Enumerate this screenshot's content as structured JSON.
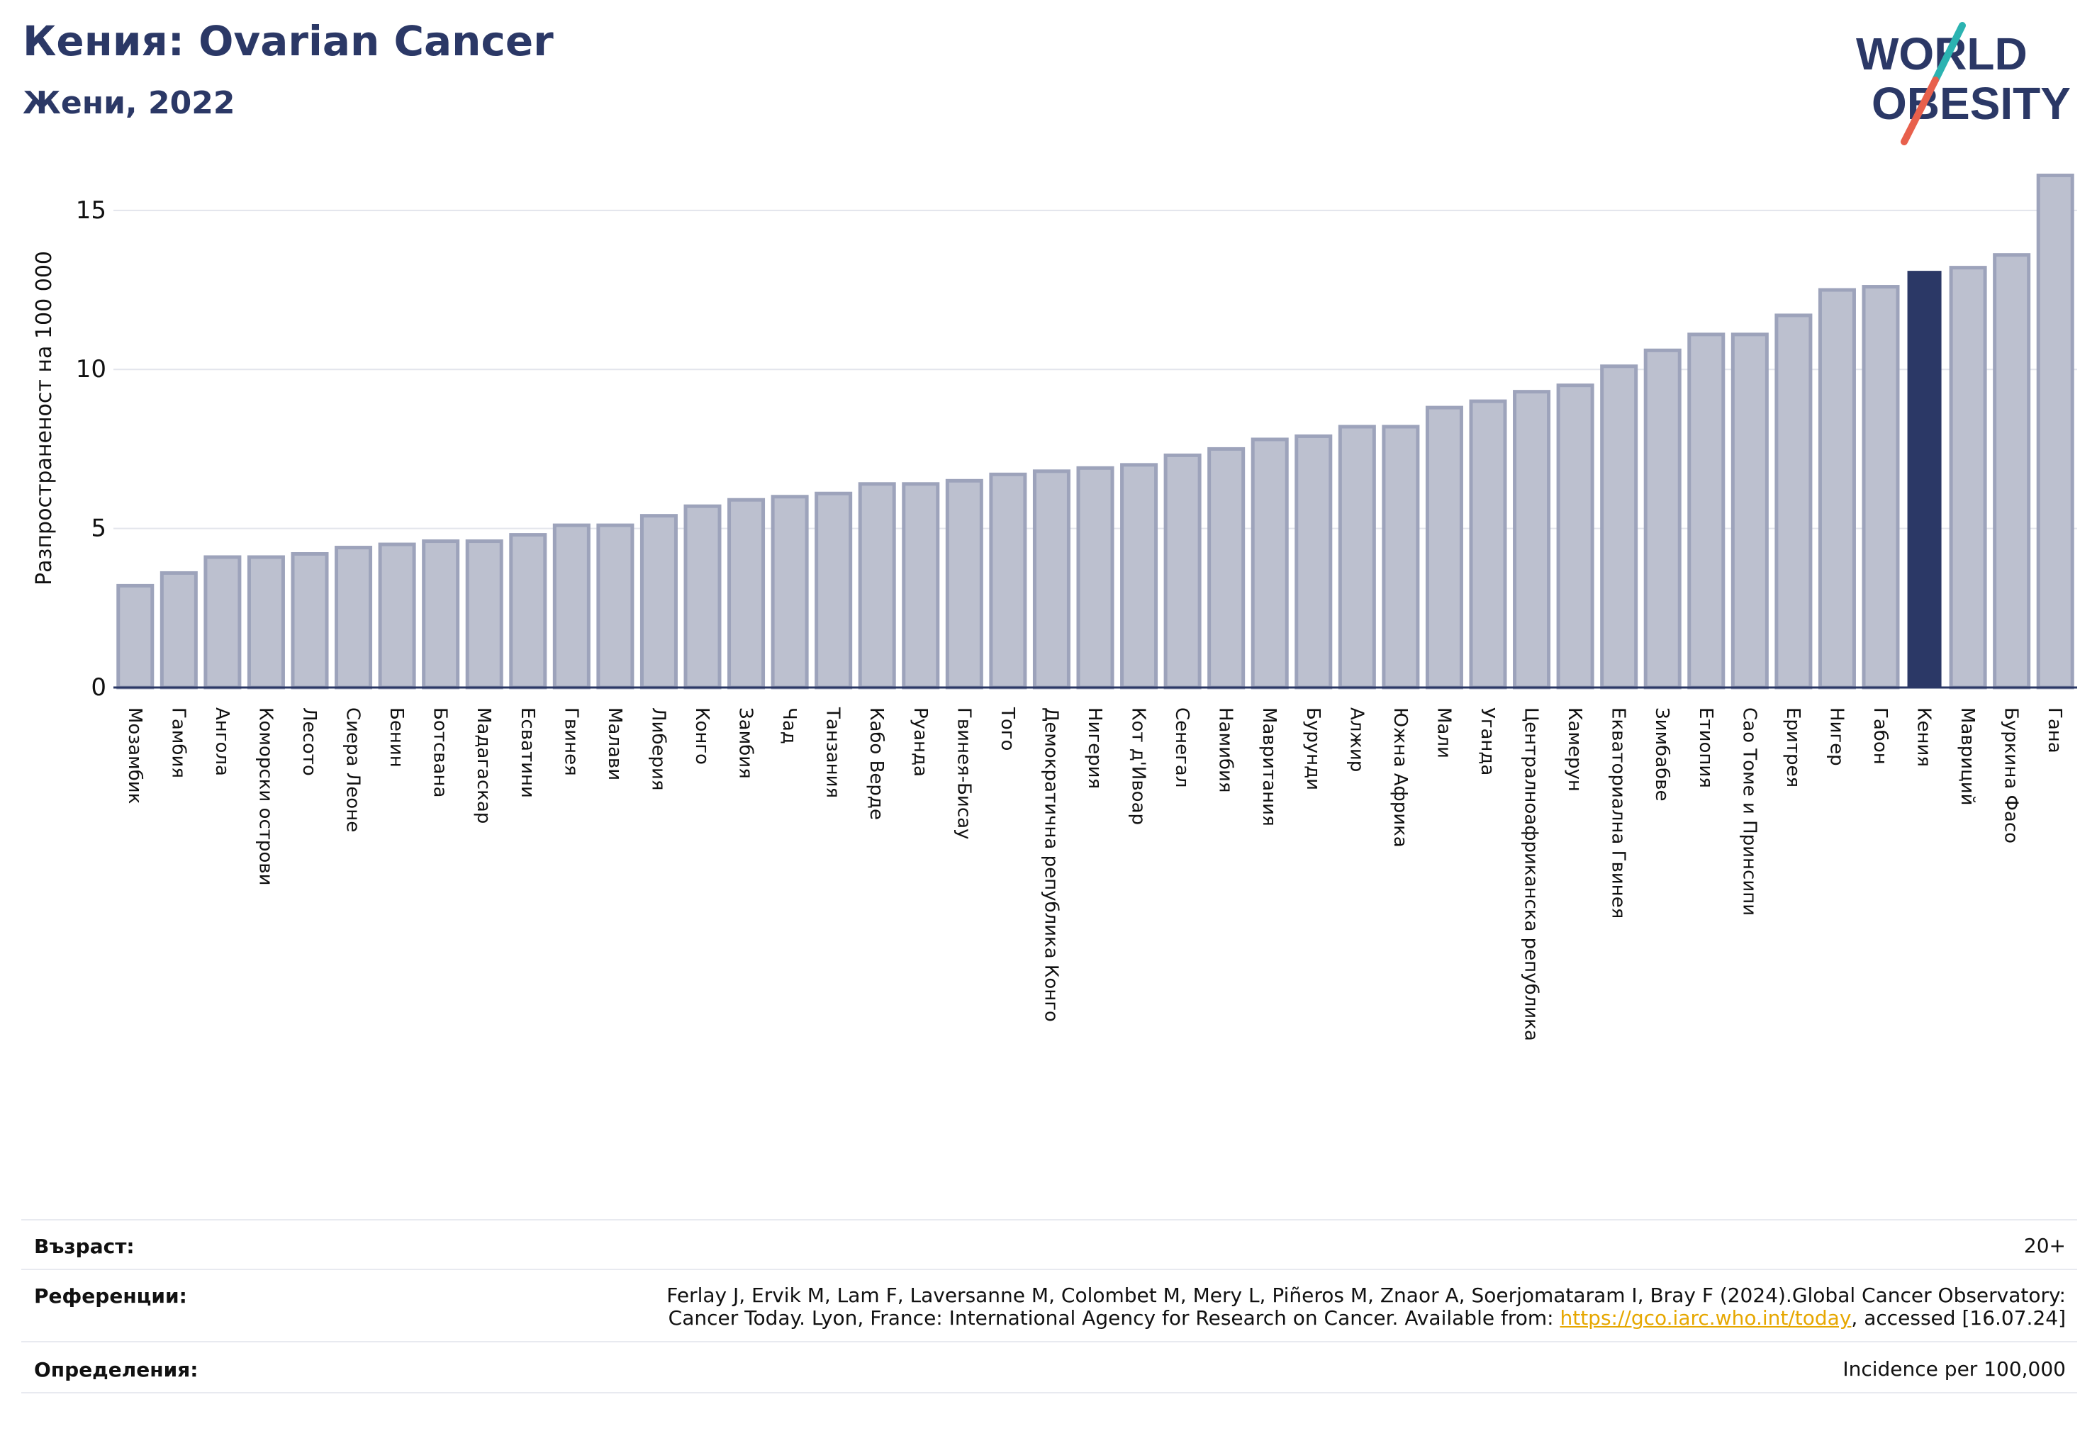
{
  "header": {
    "title": "Кения: Ovarian Cancer",
    "subtitle": "Жени, 2022"
  },
  "logo": {
    "line1": "WORLD",
    "line2": "OBESITY",
    "colors": {
      "text": "#2b3866",
      "slash_teal": "#2bb3b1",
      "slash_red": "#e8604c"
    }
  },
  "chart_data": {
    "type": "bar",
    "ylabel": "Разпространеност  на 100 000",
    "ylim": [
      0,
      16.2
    ],
    "yticks": [
      0,
      5,
      10,
      15
    ],
    "grid": true,
    "highlight": "Кения",
    "colors": {
      "bar": "#bcc0cf",
      "bar_edge": "#9da3bb",
      "highlight": "#2b3866"
    },
    "categories": [
      "Мозамбик",
      "Гамбия",
      "Ангола",
      "Коморски острови",
      "Лесото",
      "Сиера Леоне",
      "Бенин",
      "Ботсвана",
      "Мадагаскар",
      "Есватини",
      "Гвинея",
      "Малави",
      "Либерия",
      "Конго",
      "Замбия",
      "Чад",
      "Танзания",
      "Кабо Верде",
      "Руанда",
      "Гвинея-Бисау",
      "Того",
      "Демократична република Конго",
      "Нигерия",
      "Кот д'Ивоар",
      "Сенегал",
      "Намибия",
      "Мавритания",
      "Бурунди",
      "Алжир",
      "Южна Африка",
      "Мали",
      "Уганда",
      "Централноафриканска република",
      "Камерун",
      "Екваториална Гвинея",
      "Зимбабве",
      "Етиопия",
      "Сао Томе и Принсипи",
      "Еритрея",
      "Нигер",
      "Габон",
      "Кения",
      "Мавриций",
      "Буркина Фасо",
      "Гана"
    ],
    "values": [
      3.2,
      3.6,
      4.1,
      4.1,
      4.2,
      4.4,
      4.5,
      4.6,
      4.6,
      4.8,
      5.1,
      5.1,
      5.4,
      5.7,
      5.9,
      6.0,
      6.1,
      6.4,
      6.4,
      6.5,
      6.7,
      6.8,
      6.9,
      7.0,
      7.3,
      7.5,
      7.8,
      7.9,
      8.2,
      8.2,
      8.8,
      9.0,
      9.3,
      9.5,
      10.1,
      10.6,
      11.1,
      11.1,
      11.7,
      12.5,
      12.6,
      13.1,
      13.2,
      13.6,
      16.1
    ]
  },
  "footer": {
    "age_label": "Възраст:",
    "age_value": "20+",
    "refs_label": "Референции:",
    "refs_line1": "Ferlay J, Ervik M, Lam F, Laversanne M, Colombet M, Mery L, Piñeros M, Znaor A, Soerjomataram I, Bray F (2024).Global Cancer Observatory:",
    "refs_line2_a": "Cancer Today. Lyon, France: International Agency for Research on Cancer. Available from: ",
    "refs_link": "https://gco.iarc.who.int/today",
    "refs_line2_b": ", accessed [16.07.24]",
    "defs_label": "Определения:",
    "defs_value": "Incidence per 100,000"
  }
}
